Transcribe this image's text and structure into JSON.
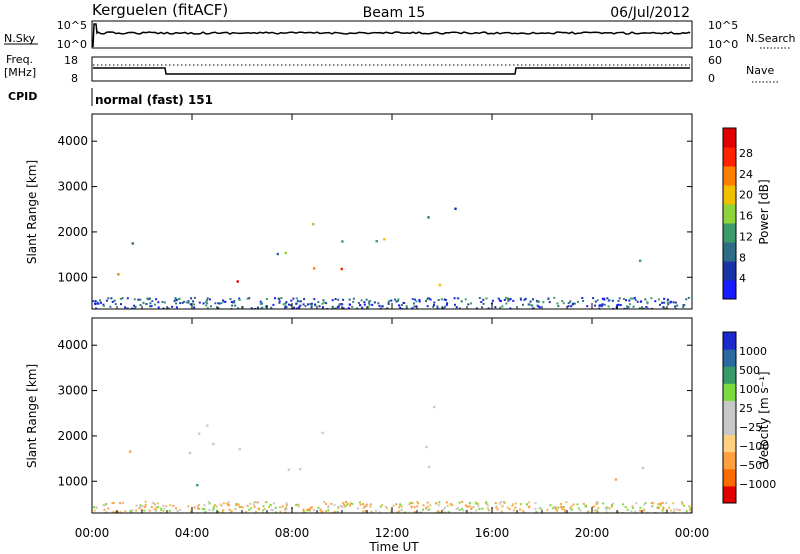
{
  "header": {
    "station": "Kerguelen (fitACF)",
    "beam": "Beam 15",
    "date": "06/Jul/2012"
  },
  "sky_panel": {
    "left_label": "N.Sky",
    "right_label": "N.Search",
    "ticks_left": [
      "10^5",
      "10^0"
    ],
    "ticks_right": [
      "10^5",
      "10^0"
    ]
  },
  "freq_panel": {
    "label_line1": "Freq.",
    "label_line2": "[MHz]",
    "right_label": "Nave",
    "ticks_left": [
      "18",
      "8"
    ],
    "ticks_right": [
      "60",
      "0"
    ]
  },
  "cpid": {
    "label": "CPID",
    "value": "normal (fast) 151"
  },
  "colors": {
    "power": [
      "#1a1aff",
      "#1a33a6",
      "#2f6d86",
      "#3d9a6a",
      "#8fd43a",
      "#f0c000",
      "#ff7f00",
      "#ff2200",
      "#e00000"
    ],
    "velocity": [
      "#e00000",
      "#ff6a00",
      "#ffa040",
      "#ffd080",
      "#c8c8c8",
      "#c8c8c8",
      "#7adc3c",
      "#3a9a6a",
      "#2a6aa0",
      "#1a2acc"
    ]
  },
  "chart_data": [
    {
      "type": "heatmap",
      "name": "power",
      "ylabel": "Slant Range [km]",
      "yticks": [
        "1000",
        "2000",
        "3000",
        "4000"
      ],
      "ylim": [
        300,
        4600
      ],
      "colorbar_label": "Power [dB]",
      "colorbar_ticks": [
        "4",
        "8",
        "12",
        "16",
        "20",
        "24",
        "28"
      ],
      "colorbar_range": [
        0,
        30
      ],
      "echo_regions": [
        {
          "t0": 0.0,
          "t1": 2.0,
          "r0": 1300,
          "r1": 1800,
          "value": 10
        },
        {
          "t0": 1.0,
          "t1": 4.0,
          "r0": 850,
          "r1": 1300,
          "value": 22
        },
        {
          "t0": 3.0,
          "t1": 7.0,
          "r0": 900,
          "r1": 1300,
          "value": 26
        },
        {
          "t0": 7.0,
          "t1": 11.5,
          "r0": 900,
          "r1": 1400,
          "value": 24
        },
        {
          "t0": 11.0,
          "t1": 13.0,
          "r0": 1500,
          "r1": 2300,
          "value": 20
        },
        {
          "t0": 3.0,
          "t1": 11.5,
          "r0": 1400,
          "r1": 2200,
          "value": 12
        },
        {
          "t0": 13.0,
          "t1": 15.0,
          "r0": 800,
          "r1": 1300,
          "value": 20
        },
        {
          "t0": 14.5,
          "t1": 16.5,
          "r0": 700,
          "r1": 1000,
          "value": 10
        },
        {
          "t0": 20.0,
          "t1": 23.0,
          "r0": 900,
          "r1": 1500,
          "value": 14
        },
        {
          "t0": 13.0,
          "t1": 16.0,
          "r0": 1800,
          "r1": 2600,
          "value": 8
        }
      ]
    },
    {
      "type": "heatmap",
      "name": "velocity",
      "ylabel": "Slant Range [km]",
      "yticks": [
        "1000",
        "2000",
        "3000",
        "4000"
      ],
      "ylim": [
        300,
        4600
      ],
      "colorbar_label": "Velocity [m s⁻¹]",
      "colorbar_ticks": [
        "1000",
        "500",
        "100",
        "25",
        "−25",
        "−100",
        "−500",
        "−1000"
      ],
      "echo_regions": [
        {
          "t0": 0.0,
          "t1": 2.8,
          "r0": 1300,
          "r1": 1900,
          "value": -400
        },
        {
          "t0": 2.5,
          "t1": 5.5,
          "r0": 800,
          "r1": 1200,
          "value": 120
        },
        {
          "t0": 3.0,
          "t1": 11.5,
          "r0": 1100,
          "r1": 2400,
          "value": 0
        },
        {
          "t0": 11.5,
          "t1": 13.8,
          "r0": 1200,
          "r1": 2900,
          "value": 0
        },
        {
          "t0": 13.0,
          "t1": 14.5,
          "r0": 800,
          "r1": 1100,
          "value": 150
        },
        {
          "t0": 19.5,
          "t1": 23.5,
          "r0": 1300,
          "r1": 1700,
          "value": 0
        },
        {
          "t0": 19.5,
          "t1": 22.5,
          "r0": 950,
          "r1": 1300,
          "value": -150
        }
      ]
    }
  ],
  "xaxis": {
    "label": "Time UT",
    "ticks": [
      "00:00",
      "04:00",
      "08:00",
      "12:00",
      "16:00",
      "20:00",
      "00:00"
    ],
    "range_hours": [
      0,
      24
    ]
  }
}
